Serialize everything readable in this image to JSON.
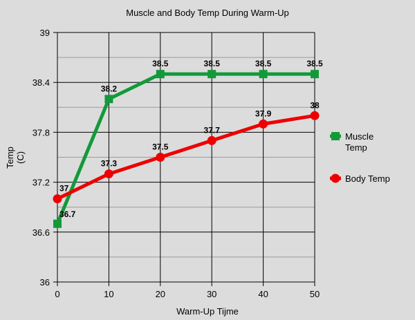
{
  "chart_data": {
    "type": "line",
    "title": "Muscle and Body Temp During Warm-Up",
    "xlabel": "Warm-Up Tijme",
    "ylabel": [
      "Temp",
      "(C)"
    ],
    "x": [
      0,
      10,
      20,
      30,
      40,
      50
    ],
    "xlim": [
      0,
      50
    ],
    "ylim": [
      36,
      39
    ],
    "xticks": [
      "0",
      "10",
      "20",
      "30",
      "40",
      "50"
    ],
    "yticks": [
      "36",
      "36.6",
      "37.2",
      "37.8",
      "38.4",
      "39"
    ],
    "grid": true,
    "legend_position": "right",
    "series": [
      {
        "name": "Muscle Temp",
        "legend_lines": [
          "Muscle",
          "Temp"
        ],
        "color": "#129a3a",
        "marker": "square",
        "values": [
          36.7,
          38.2,
          38.5,
          38.5,
          38.5,
          38.5
        ],
        "labels": [
          "36.7",
          "38.2",
          "38.5",
          "38.5",
          "38.5",
          "38.5"
        ]
      },
      {
        "name": "Body Temp",
        "legend_lines": [
          "Body Temp"
        ],
        "color": "#ee0000",
        "marker": "circle",
        "values": [
          37,
          37.3,
          37.5,
          37.7,
          37.9,
          38
        ],
        "labels": [
          "37",
          "37.3",
          "37.5",
          "37.7",
          "37.9",
          "38"
        ]
      }
    ]
  }
}
